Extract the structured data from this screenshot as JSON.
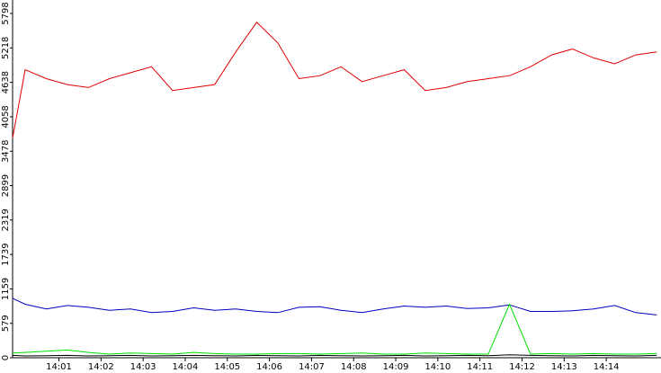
{
  "chart_data": {
    "type": "line",
    "x": [
      -0.1,
      0.2,
      0.7,
      1.2,
      1.7,
      2.2,
      2.7,
      3.2,
      3.7,
      4.2,
      4.7,
      5.2,
      5.7,
      6.2,
      6.7,
      7.2,
      7.7,
      8.2,
      8.7,
      9.2,
      9.7,
      10.2,
      10.7,
      11.2,
      11.7,
      12.2,
      12.7,
      13.2,
      13.7,
      14.2,
      14.7,
      15.2
    ],
    "series": [
      {
        "name": "red",
        "color": "#e00000",
        "values": [
          3700,
          4850,
          4700,
          4600,
          4550,
          4700,
          4800,
          4900,
          4500,
          4550,
          4600,
          5150,
          5650,
          5300,
          4700,
          4750,
          4900,
          4650,
          4750,
          4850,
          4500,
          4550,
          4650,
          4700,
          4750,
          4900,
          5100,
          5200,
          5050,
          4950,
          5100,
          5150
        ]
      },
      {
        "name": "blue",
        "color": "#0000c0",
        "values": [
          1000,
          900,
          820,
          880,
          850,
          800,
          820,
          760,
          780,
          840,
          800,
          820,
          780,
          760,
          850,
          860,
          800,
          760,
          820,
          870,
          850,
          870,
          830,
          840,
          890,
          780,
          780,
          790,
          820,
          880,
          760,
          720
        ]
      },
      {
        "name": "green",
        "color": "#00e000",
        "values": [
          80,
          90,
          110,
          130,
          90,
          60,
          80,
          70,
          60,
          90,
          70,
          60,
          60,
          70,
          70,
          60,
          70,
          80,
          60,
          60,
          80,
          70,
          60,
          60,
          900,
          60,
          70,
          60,
          70,
          60,
          60,
          70
        ]
      },
      {
        "name": "black",
        "color": "#000000",
        "values": [
          40,
          30,
          35,
          40,
          30,
          35,
          40,
          30,
          35,
          40,
          35,
          30,
          40,
          35,
          30,
          40,
          35,
          30,
          35,
          40,
          30,
          35,
          40,
          35,
          50,
          40,
          35,
          30,
          40,
          35,
          30,
          40
        ]
      }
    ],
    "xlim": [
      -0.1,
      15.3
    ],
    "xticks": [
      {
        "value": 1,
        "label": "14:01"
      },
      {
        "value": 2,
        "label": "14:02"
      },
      {
        "value": 3,
        "label": "14:03"
      },
      {
        "value": 4,
        "label": "14:04"
      },
      {
        "value": 5,
        "label": "14:05"
      },
      {
        "value": 6,
        "label": "14:06"
      },
      {
        "value": 7,
        "label": "14:07"
      },
      {
        "value": 8,
        "label": "14:08"
      },
      {
        "value": 9,
        "label": "14:09"
      },
      {
        "value": 10,
        "label": "14:10"
      },
      {
        "value": 11,
        "label": "14:11"
      },
      {
        "value": 12,
        "label": "14:12"
      },
      {
        "value": 13,
        "label": "14:13"
      },
      {
        "value": 14,
        "label": "14:14"
      }
    ],
    "ylim": [
      0,
      6025
    ],
    "yticks": [
      0,
      579,
      1159,
      1739,
      2319,
      2899,
      3478,
      4058,
      4638,
      5218,
      5798
    ]
  }
}
